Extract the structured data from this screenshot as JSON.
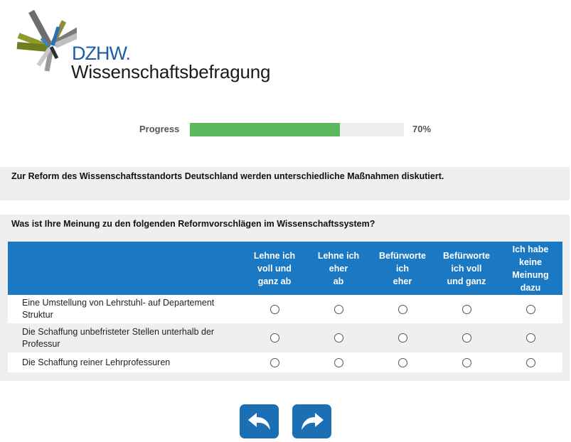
{
  "logo": {
    "dzhw": "DZHW.",
    "subtitle": "Wissenschaftsbefragung"
  },
  "progress": {
    "label": "Progress",
    "value": 0.7,
    "percent_text": "70%",
    "fill_color": "#5cb85c"
  },
  "intro": {
    "text": "Zur Reform des Wissenschaftsstandorts Deutschland werden unterschiedliche Maßnahmen diskutiert."
  },
  "question": {
    "text": "Was ist Ihre Meinung zu den folgenden Reformvorschlägen im Wissenschaftssystem?",
    "options": [
      "Lehne ich\nvoll und\nganz ab",
      "Lehne ich\neher\nab",
      "Befürworte\nich\neher",
      "Befürworte\nich voll\nund ganz",
      "Ich habe\nkeine\nMeinung\ndazu"
    ],
    "items": [
      "Eine Umstellung von Lehrstuhl- auf Departement Struktur",
      "Die Schaffung unbefristeter Stellen unterhalb der Professur",
      "Die Schaffung reiner Lehrprofessuren"
    ]
  },
  "nav": {
    "back_icon": "undo-arrow-icon",
    "next_icon": "redo-arrow-icon",
    "button_color": "#1b6fb5"
  },
  "colors": {
    "header_blue": "#1b78c2",
    "panel_gray": "#efefef"
  }
}
